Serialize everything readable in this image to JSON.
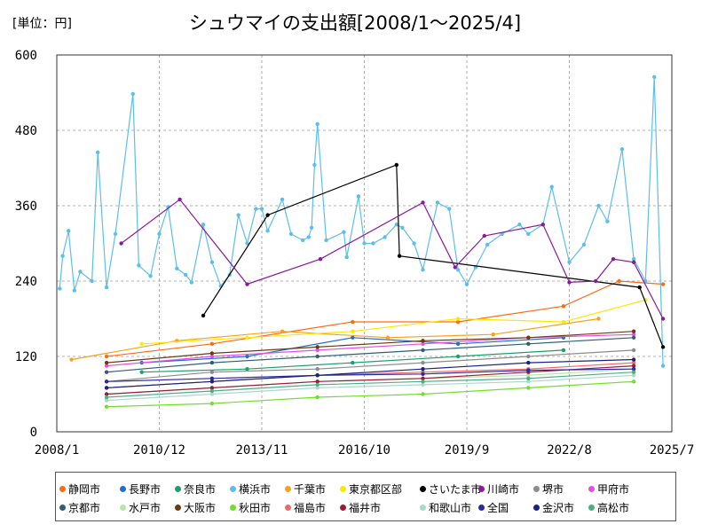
{
  "header": {
    "unit_label": "[単位：円]",
    "title": "シュウマイの支出額[2008/1～2025/4]"
  },
  "chart_data": {
    "type": "line",
    "title": "シュウマイの支出額[2008/1～2025/4]",
    "ylabel": "[単位：円]",
    "xlabel": "",
    "x_range": [
      "2008/1",
      "2025/7"
    ],
    "x_ticks": [
      "2008/1",
      "2010/12",
      "2013/11",
      "2016/10",
      "2019/9",
      "2022/8",
      "2025/7"
    ],
    "ylim": [
      0,
      600
    ],
    "y_ticks": [
      0,
      120,
      240,
      360,
      480,
      600
    ],
    "grid": {
      "horizontal": true,
      "vertical": true,
      "style": "dashed"
    },
    "legend_position": "bottom",
    "series": [
      {
        "name": "静岡市",
        "color": "#ff6a13",
        "points": [
          [
            "2009/6",
            120
          ],
          [
            "2012/6",
            140
          ],
          [
            "2016/6",
            175
          ],
          [
            "2019/6",
            175
          ],
          [
            "2022/6",
            200
          ],
          [
            "2024/1",
            240
          ],
          [
            "2025/4",
            235
          ]
        ]
      },
      {
        "name": "長野市",
        "color": "#1f6fd0",
        "points": [
          [
            "2010/6",
            110
          ],
          [
            "2013/6",
            120
          ],
          [
            "2016/6",
            150
          ],
          [
            "2019/6",
            140
          ],
          [
            "2022/6",
            150
          ]
        ]
      },
      {
        "name": "奈良市",
        "color": "#1aa06a",
        "points": [
          [
            "2010/6",
            95
          ],
          [
            "2013/6",
            100
          ],
          [
            "2016/6",
            110
          ],
          [
            "2019/6",
            120
          ],
          [
            "2022/6",
            130
          ]
        ]
      },
      {
        "name": "横浜市",
        "color": "#5bbfea",
        "points": [
          [
            "2008/2",
            228
          ],
          [
            "2008/3",
            280
          ],
          [
            "2008/5",
            320
          ],
          [
            "2008/7",
            225
          ],
          [
            "2008/9",
            255
          ],
          [
            "2009/1",
            240
          ],
          [
            "2009/3",
            445
          ],
          [
            "2009/6",
            230
          ],
          [
            "2009/9",
            315
          ],
          [
            "2010/3",
            538
          ],
          [
            "2010/5",
            265
          ],
          [
            "2010/9",
            248
          ],
          [
            "2010/12",
            315
          ],
          [
            "2011/3",
            358
          ],
          [
            "2011/6",
            260
          ],
          [
            "2011/9",
            250
          ],
          [
            "2011/11",
            238
          ],
          [
            "2012/3",
            330
          ],
          [
            "2012/6",
            270
          ],
          [
            "2012/9",
            232
          ],
          [
            "2012/12",
            250
          ],
          [
            "2013/3",
            345
          ],
          [
            "2013/6",
            300
          ],
          [
            "2013/9",
            355
          ],
          [
            "2013/11",
            355
          ],
          [
            "2014/1",
            320
          ],
          [
            "2014/6",
            370
          ],
          [
            "2014/9",
            315
          ],
          [
            "2015/1",
            305
          ],
          [
            "2015/3",
            310
          ],
          [
            "2015/4",
            325
          ],
          [
            "2015/5",
            425
          ],
          [
            "2015/6",
            490
          ],
          [
            "2015/9",
            305
          ],
          [
            "2016/3",
            318
          ],
          [
            "2016/4",
            278
          ],
          [
            "2016/8",
            375
          ],
          [
            "2016/10",
            300
          ],
          [
            "2017/1",
            300
          ],
          [
            "2017/5",
            310
          ],
          [
            "2017/9",
            330
          ],
          [
            "2017/11",
            325
          ],
          [
            "2018/3",
            300
          ],
          [
            "2018/6",
            258
          ],
          [
            "2018/11",
            365
          ],
          [
            "2019/3",
            355
          ],
          [
            "2019/6",
            258
          ],
          [
            "2019/9",
            235
          ],
          [
            "2019/12",
            262
          ],
          [
            "2020/4",
            298
          ],
          [
            "2020/9",
            315
          ],
          [
            "2021/3",
            330
          ],
          [
            "2021/6",
            315
          ],
          [
            "2021/11",
            330
          ],
          [
            "2022/2",
            390
          ],
          [
            "2022/8",
            270
          ],
          [
            "2023/1",
            298
          ],
          [
            "2023/6",
            360
          ],
          [
            "2023/9",
            335
          ],
          [
            "2024/2",
            450
          ],
          [
            "2024/6",
            275
          ],
          [
            "2024/10",
            240
          ],
          [
            "2025/1",
            565
          ],
          [
            "2025/4",
            105
          ]
        ]
      },
      {
        "name": "千葉市",
        "color": "#f7a21b",
        "points": [
          [
            "2008/6",
            115
          ],
          [
            "2011/6",
            145
          ],
          [
            "2014/6",
            160
          ],
          [
            "2017/6",
            150
          ],
          [
            "2020/6",
            155
          ],
          [
            "2023/6",
            180
          ]
        ]
      },
      {
        "name": "東京都区部",
        "color": "#ffe800",
        "points": [
          [
            "2010/6",
            140
          ],
          [
            "2013/6",
            150
          ],
          [
            "2016/6",
            160
          ],
          [
            "2019/6",
            180
          ],
          [
            "2022/6",
            175
          ],
          [
            "2024/10",
            210
          ]
        ]
      },
      {
        "name": "さいたま市",
        "color": "#000000",
        "points": [
          [
            "2012/3",
            185
          ],
          [
            "2014/1",
            345
          ],
          [
            "2017/9",
            425
          ],
          [
            "2017/10",
            280
          ],
          [
            "2024/8",
            230
          ],
          [
            "2025/4",
            135
          ]
        ]
      },
      {
        "name": "川崎市",
        "color": "#8b1a9a",
        "points": [
          [
            "2009/11",
            300
          ],
          [
            "2011/7",
            370
          ],
          [
            "2013/6",
            235
          ],
          [
            "2015/7",
            275
          ],
          [
            "2018/6",
            365
          ],
          [
            "2019/5",
            262
          ],
          [
            "2020/3",
            312
          ],
          [
            "2021/11",
            330
          ],
          [
            "2022/8",
            238
          ],
          [
            "2023/5",
            240
          ],
          [
            "2023/11",
            275
          ],
          [
            "2024/6",
            270
          ],
          [
            "2025/4",
            180
          ]
        ]
      },
      {
        "name": "堺市",
        "color": "#8c8c8c",
        "points": [
          [
            "2009/6",
            80
          ],
          [
            "2012/6",
            95
          ],
          [
            "2015/6",
            100
          ],
          [
            "2018/6",
            110
          ],
          [
            "2021/6",
            120
          ],
          [
            "2024/6",
            130
          ]
        ]
      },
      {
        "name": "甲府市",
        "color": "#e84ee6",
        "points": [
          [
            "2009/6",
            105
          ],
          [
            "2012/6",
            120
          ],
          [
            "2015/6",
            130
          ],
          [
            "2018/6",
            140
          ],
          [
            "2021/6",
            150
          ],
          [
            "2024/6",
            155
          ]
        ]
      },
      {
        "name": "京都市",
        "color": "#2f5f73",
        "points": [
          [
            "2009/6",
            95
          ],
          [
            "2012/6",
            110
          ],
          [
            "2015/6",
            120
          ],
          [
            "2018/6",
            130
          ],
          [
            "2021/6",
            140
          ],
          [
            "2024/6",
            150
          ]
        ]
      },
      {
        "name": "水戸市",
        "color": "#b8e6a8",
        "points": [
          [
            "2009/6",
            60
          ],
          [
            "2012/6",
            70
          ],
          [
            "2015/6",
            80
          ],
          [
            "2018/6",
            85
          ],
          [
            "2021/6",
            90
          ],
          [
            "2024/6",
            100
          ]
        ]
      },
      {
        "name": "大阪市",
        "color": "#6b3a12",
        "points": [
          [
            "2009/6",
            110
          ],
          [
            "2012/6",
            125
          ],
          [
            "2015/6",
            135
          ],
          [
            "2018/6",
            145
          ],
          [
            "2021/6",
            150
          ],
          [
            "2024/6",
            160
          ]
        ]
      },
      {
        "name": "秋田市",
        "color": "#6fe02a",
        "points": [
          [
            "2009/6",
            40
          ],
          [
            "2012/6",
            45
          ],
          [
            "2015/6",
            55
          ],
          [
            "2018/6",
            60
          ],
          [
            "2021/6",
            70
          ],
          [
            "2024/6",
            80
          ]
        ]
      },
      {
        "name": "福島市",
        "color": "#f06a6a",
        "points": [
          [
            "2009/6",
            70
          ],
          [
            "2012/6",
            80
          ],
          [
            "2015/6",
            90
          ],
          [
            "2018/6",
            95
          ],
          [
            "2021/6",
            100
          ],
          [
            "2024/6",
            110
          ]
        ]
      },
      {
        "name": "福井市",
        "color": "#9b1c34",
        "points": [
          [
            "2009/6",
            60
          ],
          [
            "2012/6",
            70
          ],
          [
            "2015/6",
            80
          ],
          [
            "2018/6",
            85
          ],
          [
            "2021/6",
            95
          ],
          [
            "2024/6",
            105
          ]
        ]
      },
      {
        "name": "和歌山市",
        "color": "#a9d9c8",
        "points": [
          [
            "2009/6",
            50
          ],
          [
            "2012/6",
            60
          ],
          [
            "2015/6",
            70
          ],
          [
            "2018/6",
            75
          ],
          [
            "2021/6",
            80
          ],
          [
            "2024/6",
            90
          ]
        ]
      },
      {
        "name": "全国",
        "color": "#2a2aa0",
        "points": [
          [
            "2009/6",
            80
          ],
          [
            "2012/6",
            85
          ],
          [
            "2015/6",
            90
          ],
          [
            "2018/6",
            92
          ],
          [
            "2021/6",
            98
          ],
          [
            "2024/6",
            100
          ]
        ]
      },
      {
        "name": "金沢市",
        "color": "#1a237e",
        "points": [
          [
            "2009/6",
            70
          ],
          [
            "2012/6",
            80
          ],
          [
            "2015/6",
            90
          ],
          [
            "2018/6",
            100
          ],
          [
            "2021/6",
            110
          ],
          [
            "2024/6",
            115
          ]
        ]
      },
      {
        "name": "高松市",
        "color": "#4caf84",
        "points": [
          [
            "2009/6",
            55
          ],
          [
            "2012/6",
            65
          ],
          [
            "2015/6",
            75
          ],
          [
            "2018/6",
            80
          ],
          [
            "2021/6",
            85
          ],
          [
            "2024/6",
            95
          ]
        ]
      }
    ]
  }
}
